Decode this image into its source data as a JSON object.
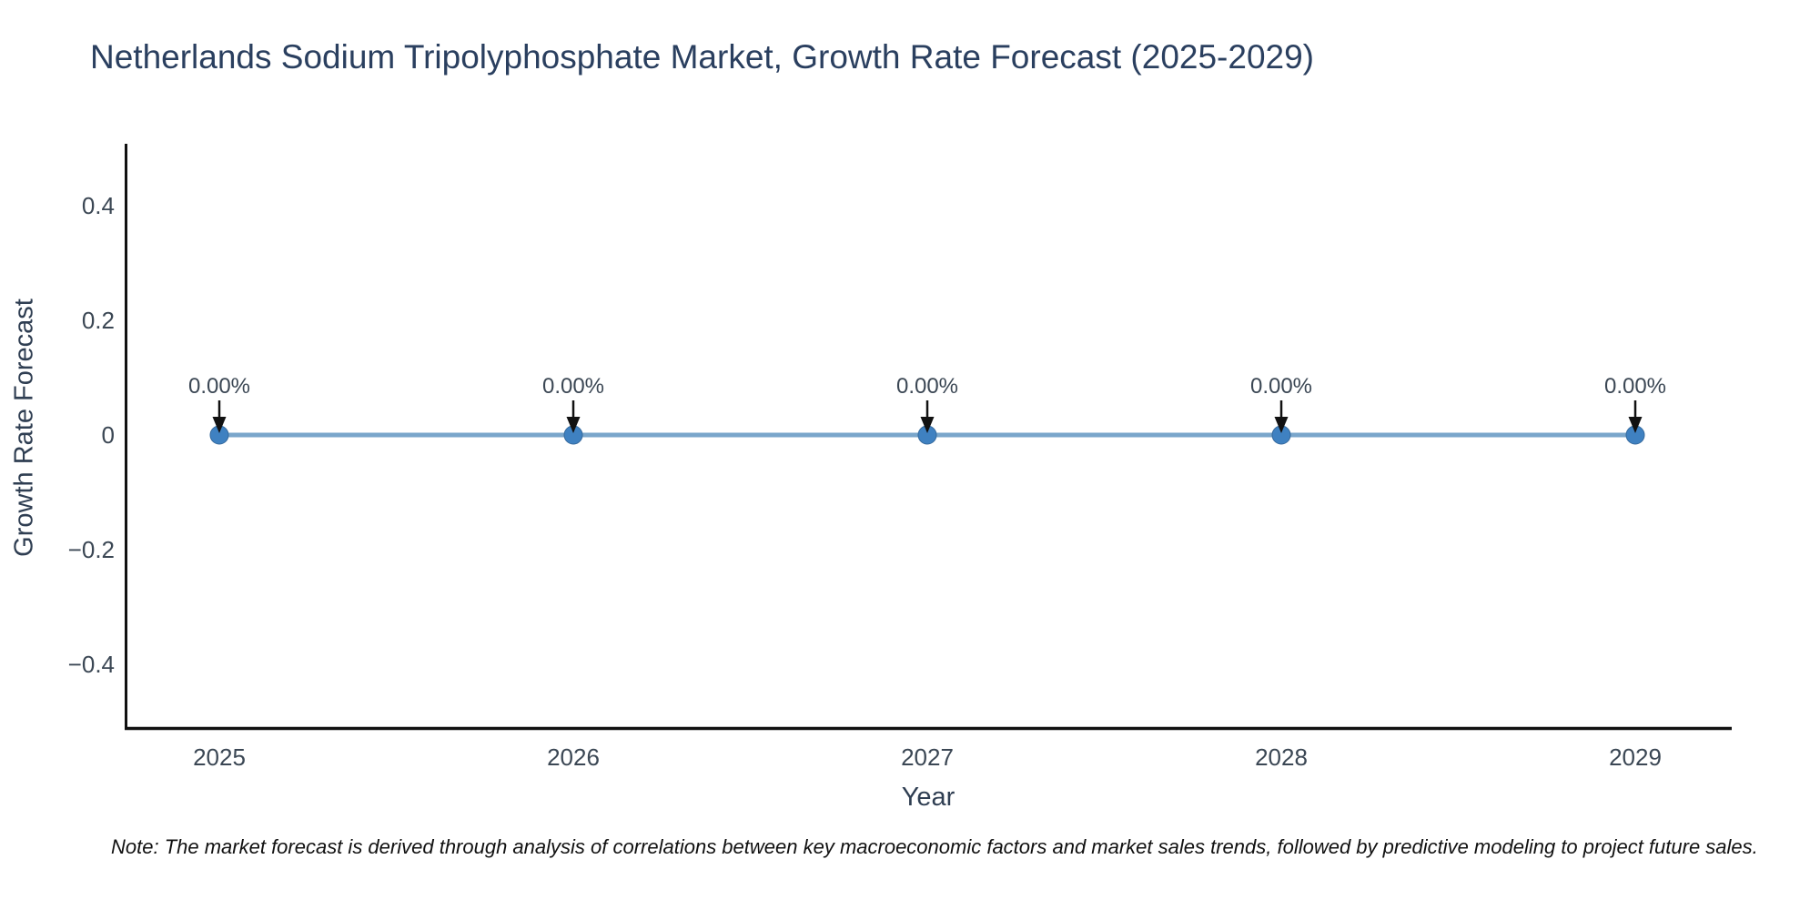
{
  "title": "Netherlands Sodium Tripolyphosphate Market, Growth Rate Forecast (2025-2029)",
  "note": "Note: The market forecast is derived through analysis of correlations between key macroeconomic factors and market sales trends, followed by predictive modeling to project future sales.",
  "chart_data": {
    "type": "line",
    "title": "Netherlands Sodium Tripolyphosphate Market, Growth Rate Forecast (2025-2029)",
    "xlabel": "Year",
    "ylabel": "Growth Rate Forecast",
    "x": [
      2025,
      2026,
      2027,
      2028,
      2029
    ],
    "x_tick_labels": [
      "2025",
      "2026",
      "2027",
      "2028",
      "2029"
    ],
    "series": [
      {
        "name": "Growth Rate Forecast",
        "values": [
          0,
          0,
          0,
          0,
          0
        ]
      }
    ],
    "annotations": [
      "0.00%",
      "0.00%",
      "0.00%",
      "0.00%",
      "0.00%"
    ],
    "y_ticks": [
      0.4,
      0.2,
      0,
      -0.2,
      -0.4
    ],
    "y_tick_labels": [
      "0.4",
      "0.2",
      "0",
      "−0.2",
      "−0.4"
    ],
    "ylim": [
      -0.51,
      0.51
    ],
    "grid": false,
    "legend": "none",
    "line_color": "#7aa6cb",
    "marker_color": "#3f81c1",
    "marker_edge_color": "#35699c",
    "axis_color": "#111111",
    "tick_color": "#3b4754",
    "annotation_color": "#3b4754",
    "arrow_color": "#111111",
    "title_color": "#2a3f5f",
    "background_color": "#ffffff"
  }
}
